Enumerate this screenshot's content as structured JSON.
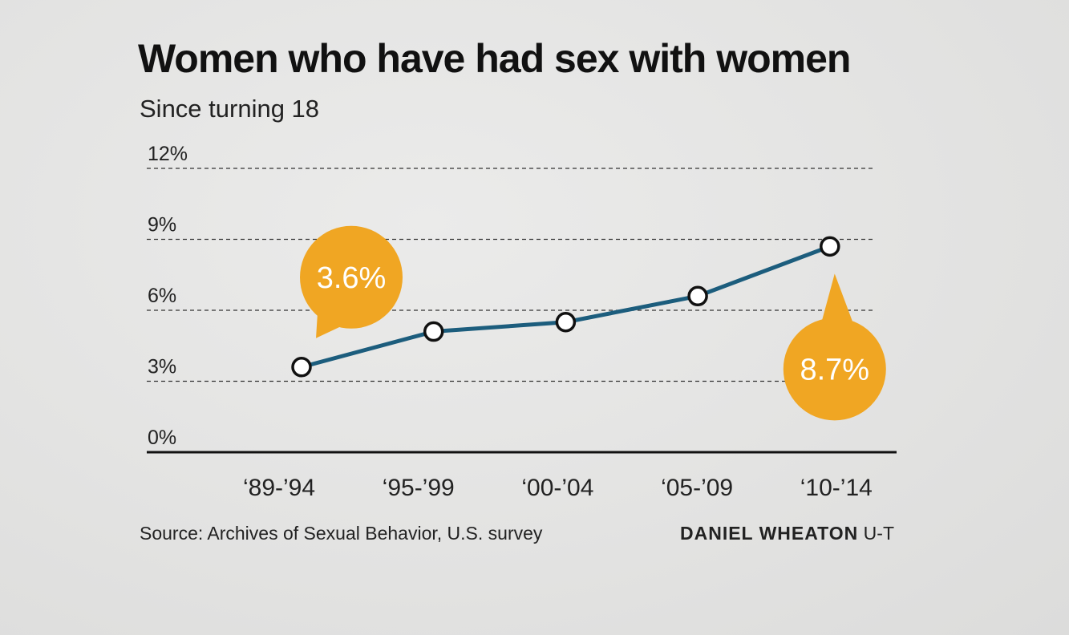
{
  "header": {
    "title": "Women who have had sex with women",
    "subtitle": "Since turning 18"
  },
  "footer": {
    "source": "Source: Archives of Sexual Behavior, U.S. survey",
    "credit_name": "DANIEL WHEATON",
    "credit_org": "U-T"
  },
  "colors": {
    "line": "#1c5d7d",
    "callout": "#f0a623",
    "axis": "#111111",
    "grid": "#333333"
  },
  "chart_data": {
    "type": "line",
    "title": "Women who have had sex with women",
    "subtitle": "Since turning 18",
    "categories": [
      "‘89-’94",
      "‘95-’99",
      "‘00-’04",
      "‘05-’09",
      "‘10-’14"
    ],
    "values": [
      3.6,
      5.1,
      5.5,
      6.6,
      8.7
    ],
    "ylim": [
      0,
      12
    ],
    "yticks": [
      0,
      3,
      6,
      9,
      12
    ],
    "ytick_labels": [
      "0%",
      "3%",
      "6%",
      "9%",
      "12%"
    ],
    "grid": "dashed horizontal",
    "annotations": [
      {
        "index": 0,
        "text": "3.6%",
        "placement": "above"
      },
      {
        "index": 4,
        "text": "8.7%",
        "placement": "below"
      }
    ]
  }
}
